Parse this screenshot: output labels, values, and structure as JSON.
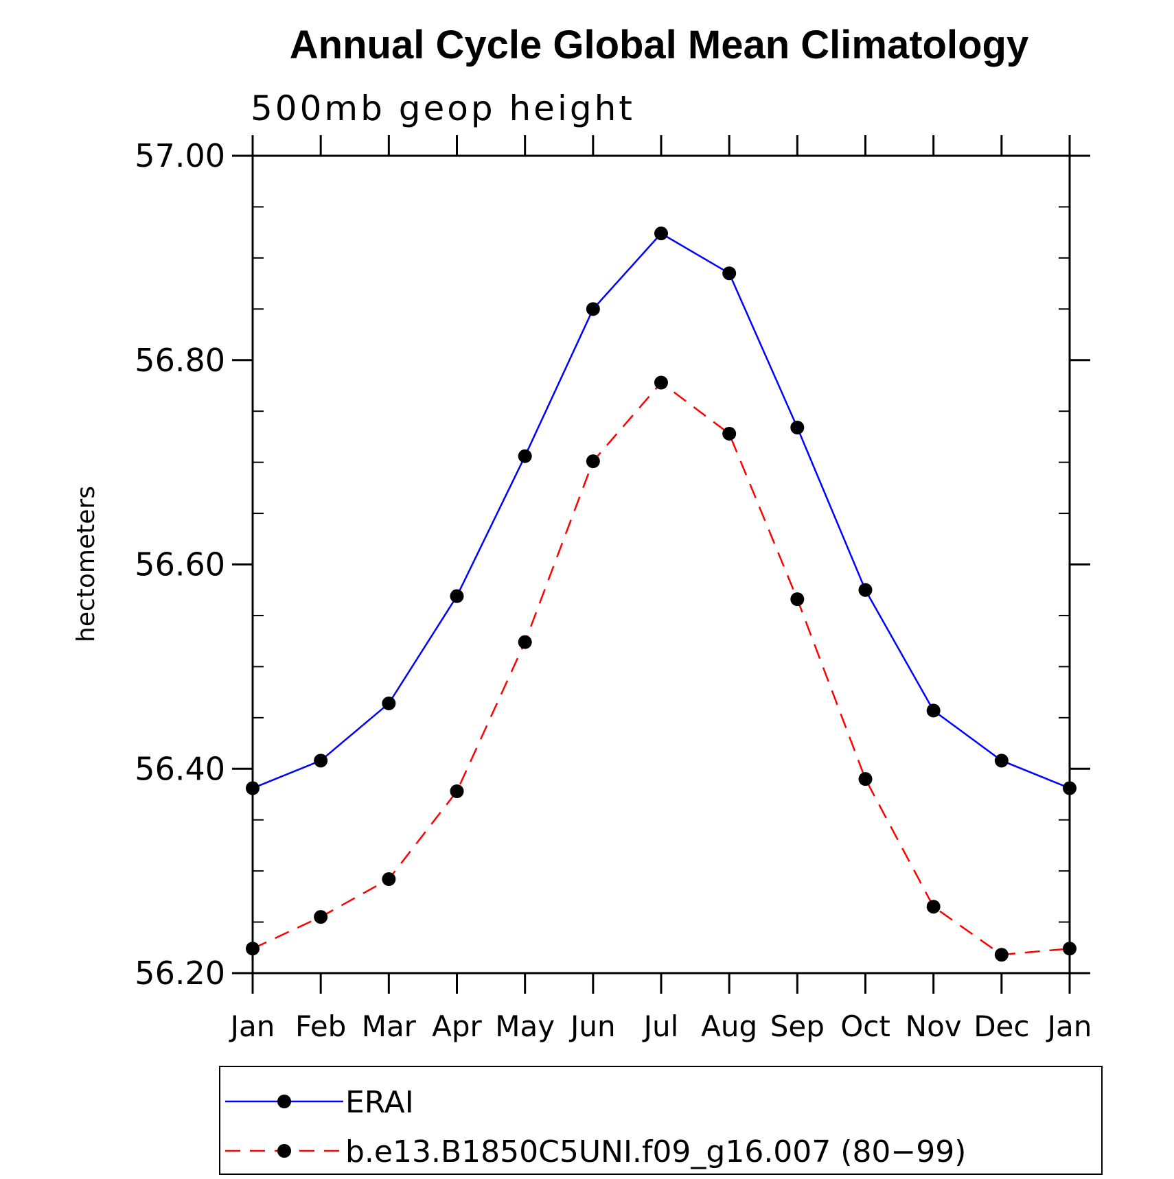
{
  "chart_data": {
    "type": "line",
    "title": "Annual Cycle Global Mean Climatology",
    "subtitle": "500mb geop height",
    "xlabel": "",
    "ylabel": "hectometers",
    "categories": [
      "Jan",
      "Feb",
      "Mar",
      "Apr",
      "May",
      "Jun",
      "Jul",
      "Aug",
      "Sep",
      "Oct",
      "Nov",
      "Dec",
      "Jan"
    ],
    "ylim": [
      56.2,
      57.0
    ],
    "yticks": [
      "56.20",
      "56.40",
      "56.60",
      "56.80",
      "57.00"
    ],
    "yminor_step": 0.05,
    "grid": false,
    "legend_position": "bottom",
    "series": [
      {
        "name": "ERAI",
        "color": "#0000ff",
        "dash": "solid",
        "marker": "filled-circle",
        "values": [
          56.381,
          56.408,
          56.464,
          56.569,
          56.706,
          56.85,
          56.924,
          56.885,
          56.734,
          56.575,
          56.457,
          56.408,
          56.381
        ]
      },
      {
        "name": "b.e13.B1850C5UNI.f09_g16.007 (80−99)",
        "color": "#ff0000",
        "dash": "dashed",
        "marker": "filled-circle",
        "values": [
          56.224,
          56.255,
          56.292,
          56.378,
          56.524,
          56.701,
          56.778,
          56.728,
          56.566,
          56.39,
          56.265,
          56.218,
          56.224
        ]
      }
    ]
  }
}
